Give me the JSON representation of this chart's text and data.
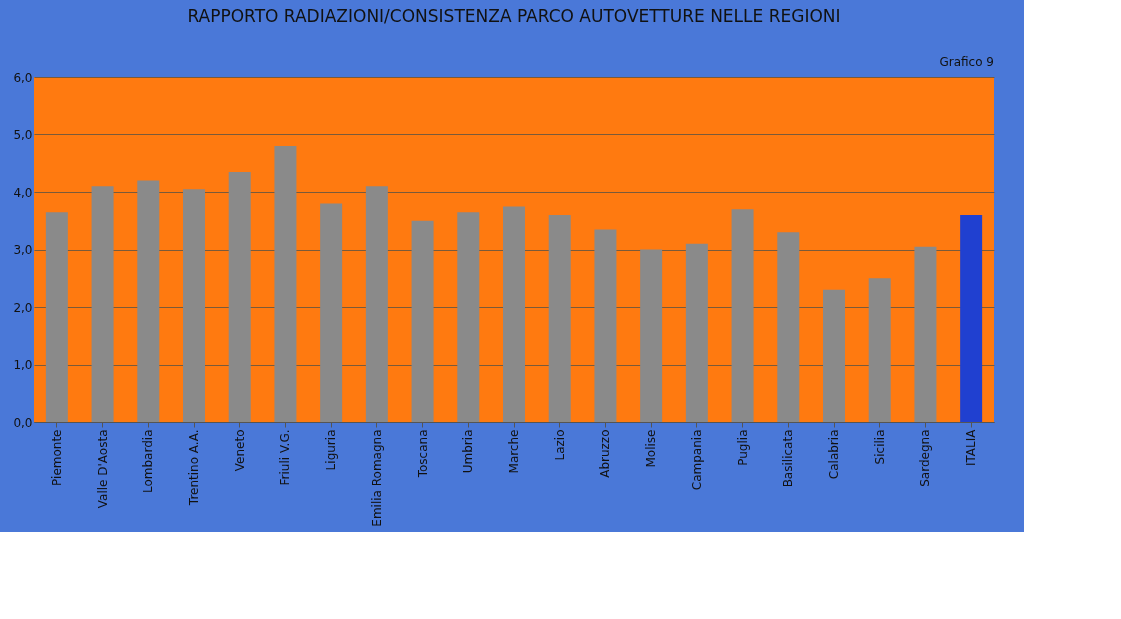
{
  "chart_data": {
    "type": "bar",
    "title": "RAPPORTO RADIAZIONI/CONSISTENZA PARCO AUTOVETTURE NELLE REGIONI",
    "categories": [
      "Piemonte",
      "Valle D'Aosta",
      "Lombardia",
      "Trentino A.A.",
      "Veneto",
      "Friuli V.G.",
      "Liguria",
      "Emilia Romagna",
      "Toscana",
      "Umbria",
      "Marche",
      "Lazio",
      "Abruzzo",
      "Molise",
      "Campania",
      "Puglia",
      "Basilicata",
      "Calabria",
      "Sicilia",
      "Sardegna",
      "ITALIA"
    ],
    "values": [
      3.65,
      4.1,
      4.2,
      4.05,
      4.35,
      4.8,
      3.8,
      4.1,
      3.5,
      3.65,
      3.75,
      3.6,
      3.35,
      3.0,
      3.1,
      3.7,
      3.3,
      2.3,
      2.5,
      3.05,
      3.6
    ],
    "colors": [
      "#8a8a8a",
      "#8a8a8a",
      "#8a8a8a",
      "#8a8a8a",
      "#8a8a8a",
      "#8a8a8a",
      "#8a8a8a",
      "#8a8a8a",
      "#8a8a8a",
      "#8a8a8a",
      "#8a8a8a",
      "#8a8a8a",
      "#8a8a8a",
      "#8a8a8a",
      "#8a8a8a",
      "#8a8a8a",
      "#8a8a8a",
      "#8a8a8a",
      "#8a8a8a",
      "#8a8a8a",
      "#2040d0"
    ],
    "ylim": [
      0,
      6
    ],
    "yticks": [
      {
        "value": 0,
        "label": "0,0"
      },
      {
        "value": 1,
        "label": "1,0"
      },
      {
        "value": 2,
        "label": "2,0"
      },
      {
        "value": 3,
        "label": "3,0"
      },
      {
        "value": 4,
        "label": "4,0"
      },
      {
        "value": 5,
        "label": "5,0"
      },
      {
        "value": 6,
        "label": "6,0"
      }
    ],
    "grid": "y",
    "annotations": [
      "Grafico 9"
    ]
  }
}
